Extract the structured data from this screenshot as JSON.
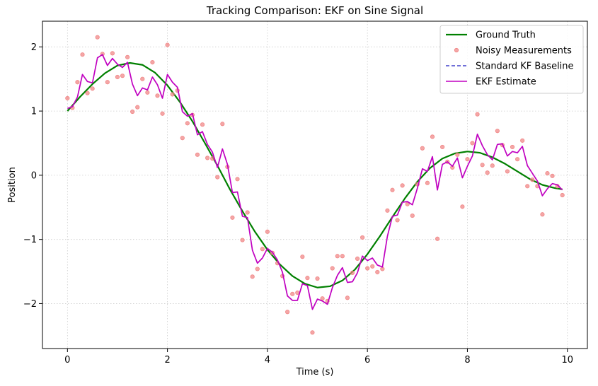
{
  "chart_data": {
    "type": "line",
    "title": "Tracking Comparison: EKF on Sine Signal",
    "xlabel": "Time (s)",
    "ylabel": "Position",
    "xlim": [
      -0.5,
      10.4
    ],
    "ylim": [
      -2.7,
      2.4
    ],
    "xticks": [
      0,
      2,
      4,
      6,
      8,
      10
    ],
    "yticks": [
      -2,
      -1,
      0,
      1,
      2
    ],
    "xtick_labels": [
      "0",
      "2",
      "4",
      "6",
      "8",
      "10"
    ],
    "ytick_labels": [
      "−2",
      "−1",
      "0",
      "1",
      "2"
    ],
    "grid": true,
    "legend_position": "top-right",
    "series": [
      {
        "name": "Ground Truth",
        "kind": "line",
        "color": "#008000",
        "x": [
          0,
          0.25,
          0.5,
          0.75,
          1.0,
          1.25,
          1.5,
          1.75,
          2.0,
          2.25,
          2.5,
          2.75,
          3.0,
          3.25,
          3.5,
          3.75,
          4.0,
          4.25,
          4.5,
          4.75,
          5.0,
          5.25,
          5.5,
          5.75,
          6.0,
          6.25,
          6.5,
          6.75,
          7.0,
          7.25,
          7.5,
          7.75,
          8.0,
          8.25,
          8.5,
          8.75,
          9.0,
          9.25,
          9.5,
          9.75,
          9.9
        ],
        "y": [
          1.0,
          1.22,
          1.42,
          1.59,
          1.71,
          1.75,
          1.72,
          1.6,
          1.4,
          1.14,
          0.84,
          0.5,
          0.15,
          -0.22,
          -0.56,
          -0.88,
          -1.16,
          -1.39,
          -1.57,
          -1.69,
          -1.75,
          -1.73,
          -1.64,
          -1.47,
          -1.23,
          -0.95,
          -0.65,
          -0.36,
          -0.1,
          0.11,
          0.26,
          0.34,
          0.37,
          0.35,
          0.28,
          0.18,
          0.06,
          -0.06,
          -0.15,
          -0.2,
          -0.22
        ]
      },
      {
        "name": "Noisy Measurements",
        "kind": "scatter",
        "color": "#f08080",
        "x": [
          0,
          0.1,
          0.2,
          0.3,
          0.4,
          0.5,
          0.6,
          0.7,
          0.8,
          0.9,
          1.0,
          1.1,
          1.2,
          1.3,
          1.4,
          1.5,
          1.6,
          1.7,
          1.8,
          1.9,
          2.0,
          2.1,
          2.2,
          2.3,
          2.4,
          2.5,
          2.6,
          2.7,
          2.8,
          2.9,
          3.0,
          3.1,
          3.2,
          3.3,
          3.4,
          3.5,
          3.6,
          3.7,
          3.8,
          3.9,
          4.0,
          4.1,
          4.2,
          4.3,
          4.4,
          4.5,
          4.6,
          4.7,
          4.8,
          4.9,
          5.0,
          5.1,
          5.2,
          5.3,
          5.4,
          5.5,
          5.6,
          5.7,
          5.8,
          5.9,
          6.0,
          6.1,
          6.2,
          6.3,
          6.4,
          6.5,
          6.6,
          6.7,
          6.8,
          6.9,
          7.0,
          7.1,
          7.2,
          7.3,
          7.4,
          7.5,
          7.6,
          7.7,
          7.8,
          7.9,
          8.0,
          8.1,
          8.2,
          8.3,
          8.4,
          8.5,
          8.6,
          8.7,
          8.8,
          8.9,
          9.0,
          9.1,
          9.2,
          9.3,
          9.4,
          9.5,
          9.6,
          9.7,
          9.8,
          9.9
        ],
        "y": [
          1.2,
          1.05,
          1.45,
          1.88,
          1.28,
          1.35,
          2.15,
          1.89,
          1.45,
          1.9,
          1.53,
          1.55,
          1.84,
          0.99,
          1.06,
          1.5,
          1.29,
          1.76,
          1.24,
          0.96,
          2.03,
          1.26,
          1.32,
          0.58,
          0.81,
          0.94,
          0.32,
          0.79,
          0.27,
          0.26,
          -0.03,
          0.8,
          0.13,
          -0.66,
          -0.06,
          -1.01,
          -0.58,
          -1.58,
          -1.46,
          -1.15,
          -0.88,
          -1.21,
          -1.37,
          -1.57,
          -2.13,
          -1.85,
          -1.83,
          -1.27,
          -1.6,
          -2.45,
          -1.61,
          -1.92,
          -1.96,
          -1.45,
          -1.26,
          -1.26,
          -1.91,
          -1.52,
          -1.3,
          -0.97,
          -1.45,
          -1.42,
          -1.51,
          -1.46,
          -0.55,
          -0.23,
          -0.7,
          -0.16,
          -0.45,
          -0.63,
          -0.14,
          0.42,
          -0.12,
          0.6,
          -0.99,
          0.44,
          0.21,
          0.12,
          0.32,
          -0.49,
          0.25,
          0.5,
          0.95,
          0.16,
          0.04,
          0.15,
          0.69,
          0.47,
          0.06,
          0.44,
          0.25,
          0.54,
          -0.17,
          -0.07,
          -0.17,
          -0.61,
          0.03,
          -0.01,
          -0.17,
          -0.31
        ]
      },
      {
        "name": "Standard KF Baseline",
        "kind": "dashed-line",
        "color": "#4040cc",
        "x": [],
        "y": []
      },
      {
        "name": "EKF Estimate",
        "kind": "line",
        "color": "#c000c0",
        "x": [
          0,
          0.1,
          0.2,
          0.3,
          0.4,
          0.5,
          0.6,
          0.7,
          0.8,
          0.9,
          1.0,
          1.1,
          1.2,
          1.3,
          1.4,
          1.5,
          1.6,
          1.7,
          1.8,
          1.9,
          2.0,
          2.1,
          2.2,
          2.3,
          2.4,
          2.5,
          2.6,
          2.7,
          2.8,
          2.9,
          3.0,
          3.1,
          3.2,
          3.3,
          3.4,
          3.5,
          3.6,
          3.7,
          3.8,
          3.9,
          4.0,
          4.1,
          4.2,
          4.3,
          4.4,
          4.5,
          4.6,
          4.7,
          4.8,
          4.9,
          5.0,
          5.1,
          5.2,
          5.3,
          5.4,
          5.5,
          5.6,
          5.7,
          5.8,
          5.9,
          6.0,
          6.1,
          6.2,
          6.3,
          6.4,
          6.5,
          6.6,
          6.7,
          6.8,
          6.9,
          7.0,
          7.1,
          7.2,
          7.3,
          7.4,
          7.5,
          7.6,
          7.7,
          7.8,
          7.9,
          8.0,
          8.1,
          8.2,
          8.3,
          8.4,
          8.5,
          8.6,
          8.7,
          8.8,
          8.9,
          9.0,
          9.1,
          9.2,
          9.3,
          9.4,
          9.5,
          9.6,
          9.7,
          9.8,
          9.9
        ],
        "y": [
          1.04,
          1.07,
          1.22,
          1.57,
          1.46,
          1.44,
          1.83,
          1.88,
          1.71,
          1.82,
          1.73,
          1.68,
          1.76,
          1.42,
          1.24,
          1.36,
          1.33,
          1.53,
          1.41,
          1.2,
          1.57,
          1.45,
          1.37,
          0.99,
          0.92,
          0.96,
          0.63,
          0.68,
          0.48,
          0.36,
          0.12,
          0.41,
          0.17,
          -0.27,
          -0.26,
          -0.64,
          -0.66,
          -1.17,
          -1.37,
          -1.29,
          -1.14,
          -1.2,
          -1.32,
          -1.51,
          -1.88,
          -1.95,
          -1.95,
          -1.69,
          -1.72,
          -2.09,
          -1.93,
          -1.96,
          -2.01,
          -1.75,
          -1.56,
          -1.44,
          -1.67,
          -1.66,
          -1.52,
          -1.26,
          -1.33,
          -1.29,
          -1.4,
          -1.43,
          -0.95,
          -0.64,
          -0.62,
          -0.42,
          -0.41,
          -0.46,
          -0.2,
          0.1,
          0.06,
          0.29,
          -0.23,
          0.17,
          0.21,
          0.14,
          0.27,
          -0.04,
          0.14,
          0.3,
          0.64,
          0.46,
          0.32,
          0.24,
          0.48,
          0.49,
          0.3,
          0.37,
          0.35,
          0.45,
          0.15,
          0.03,
          -0.09,
          -0.32,
          -0.21,
          -0.13,
          -0.15,
          -0.23
        ]
      }
    ]
  }
}
